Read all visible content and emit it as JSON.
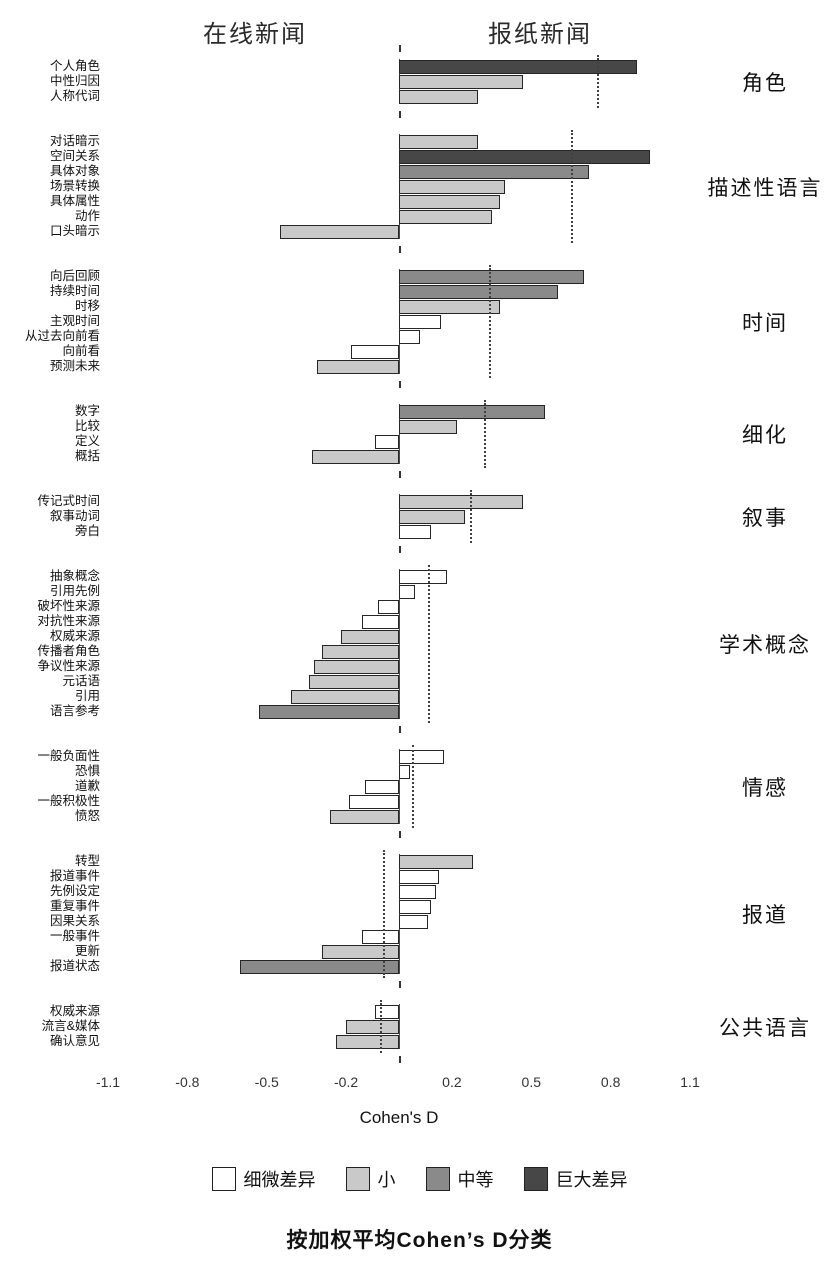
{
  "page": {
    "header_left": "在线新闻",
    "header_right": "报纸新闻",
    "xlabel": "Cohen's D",
    "caption": "按加权平均Cohen’s D分类"
  },
  "colors": {
    "trivial": "#ffffff",
    "small": "#c9c9c9",
    "medium": "#8a8a8a",
    "huge": "#474747",
    "bar_border": "#262626",
    "mean_line": "#404040"
  },
  "legend": {
    "items": [
      {
        "label": "细微差异",
        "size": "trivial"
      },
      {
        "label": "小",
        "size": "small"
      },
      {
        "label": "中等",
        "size": "medium"
      },
      {
        "label": "巨大差异",
        "size": "huge"
      }
    ]
  },
  "chart_data": {
    "type": "bar",
    "orientation": "horizontal",
    "title": "",
    "xlabel": "Cohen's D",
    "caption": "按加权平均Cohen’s D分类",
    "column_titles": [
      "在线新闻",
      "报纸新闻"
    ],
    "xlim": [
      -1.1,
      1.1
    ],
    "x_ticks": [
      "-1.1",
      "-0.8",
      "-0.5",
      "-0.2",
      "0.2",
      "0.5",
      "0.8",
      "1.1"
    ],
    "size_classes": [
      "细微差异",
      "小",
      "中等",
      "巨大差异"
    ],
    "groups": [
      {
        "name": "角色",
        "mean": 0.75,
        "bars": [
          {
            "label": "个人角色",
            "value": 0.9,
            "size": "huge"
          },
          {
            "label": "中性归因",
            "value": 0.47,
            "size": "small"
          },
          {
            "label": "人称代词",
            "value": 0.3,
            "size": "small"
          }
        ]
      },
      {
        "name": "描述性语言",
        "mean": 0.65,
        "bars": [
          {
            "label": "对话暗示",
            "value": 0.3,
            "size": "small"
          },
          {
            "label": "空间关系",
            "value": 0.95,
            "size": "huge"
          },
          {
            "label": "具体对象",
            "value": 0.72,
            "size": "medium"
          },
          {
            "label": "场景转换",
            "value": 0.4,
            "size": "small"
          },
          {
            "label": "具体属性",
            "value": 0.38,
            "size": "small"
          },
          {
            "label": "动作",
            "value": 0.35,
            "size": "small"
          },
          {
            "label": "口头暗示",
            "value": -0.45,
            "size": "small"
          }
        ]
      },
      {
        "name": "时间",
        "mean": 0.34,
        "bars": [
          {
            "label": "向后回顾",
            "value": 0.7,
            "size": "medium"
          },
          {
            "label": "持续时间",
            "value": 0.6,
            "size": "medium"
          },
          {
            "label": "时移",
            "value": 0.38,
            "size": "small"
          },
          {
            "label": "主观时间",
            "value": 0.16,
            "size": "trivial"
          },
          {
            "label": "从过去向前看",
            "value": 0.08,
            "size": "trivial"
          },
          {
            "label": "向前看",
            "value": -0.18,
            "size": "trivial"
          },
          {
            "label": "预测未来",
            "value": -0.31,
            "size": "small"
          }
        ]
      },
      {
        "name": "细化",
        "mean": 0.32,
        "bars": [
          {
            "label": "数字",
            "value": 0.55,
            "size": "medium"
          },
          {
            "label": "比较",
            "value": 0.22,
            "size": "small"
          },
          {
            "label": "定义",
            "value": -0.09,
            "size": "trivial"
          },
          {
            "label": "概括",
            "value": -0.33,
            "size": "small"
          }
        ]
      },
      {
        "name": "叙事",
        "mean": 0.27,
        "bars": [
          {
            "label": "传记式时间",
            "value": 0.47,
            "size": "small"
          },
          {
            "label": "叙事动词",
            "value": 0.25,
            "size": "small"
          },
          {
            "label": "旁白",
            "value": 0.12,
            "size": "trivial"
          }
        ]
      },
      {
        "name": "学术概念",
        "mean": 0.11,
        "bars": [
          {
            "label": "抽象概念",
            "value": 0.18,
            "size": "trivial"
          },
          {
            "label": "引用先例",
            "value": 0.06,
            "size": "trivial"
          },
          {
            "label": "破坏性来源",
            "value": -0.08,
            "size": "trivial"
          },
          {
            "label": "对抗性来源",
            "value": -0.14,
            "size": "trivial"
          },
          {
            "label": "权威来源",
            "value": -0.22,
            "size": "small"
          },
          {
            "label": "传播者角色",
            "value": -0.29,
            "size": "small"
          },
          {
            "label": "争议性来源",
            "value": -0.32,
            "size": "small"
          },
          {
            "label": "元话语",
            "value": -0.34,
            "size": "small"
          },
          {
            "label": "引用",
            "value": -0.41,
            "size": "small"
          },
          {
            "label": "语言参考",
            "value": -0.53,
            "size": "medium"
          }
        ]
      },
      {
        "name": "情感",
        "mean": 0.05,
        "bars": [
          {
            "label": "一般负面性",
            "value": 0.17,
            "size": "trivial"
          },
          {
            "label": "恐惧",
            "value": 0.04,
            "size": "trivial"
          },
          {
            "label": "道歉",
            "value": -0.13,
            "size": "trivial"
          },
          {
            "label": "一般积极性",
            "value": -0.19,
            "size": "trivial"
          },
          {
            "label": "愤怒",
            "value": -0.26,
            "size": "small"
          }
        ]
      },
      {
        "name": "报道",
        "mean": -0.06,
        "bars": [
          {
            "label": "转型",
            "value": 0.28,
            "size": "small"
          },
          {
            "label": "报道事件",
            "value": 0.15,
            "size": "trivial"
          },
          {
            "label": "先例设定",
            "value": 0.14,
            "size": "trivial"
          },
          {
            "label": "重复事件",
            "value": 0.12,
            "size": "trivial"
          },
          {
            "label": "因果关系",
            "value": 0.11,
            "size": "trivial"
          },
          {
            "label": "一般事件",
            "value": -0.14,
            "size": "trivial"
          },
          {
            "label": "更新",
            "value": -0.29,
            "size": "small"
          },
          {
            "label": "报道状态",
            "value": -0.6,
            "size": "medium"
          }
        ]
      },
      {
        "name": "公共语言",
        "mean": -0.07,
        "bars": [
          {
            "label": "权威来源",
            "value": -0.09,
            "size": "trivial"
          },
          {
            "label": "流言&媒体",
            "value": -0.2,
            "size": "small"
          },
          {
            "label": "确认意见",
            "value": -0.24,
            "size": "small"
          }
        ]
      }
    ]
  }
}
